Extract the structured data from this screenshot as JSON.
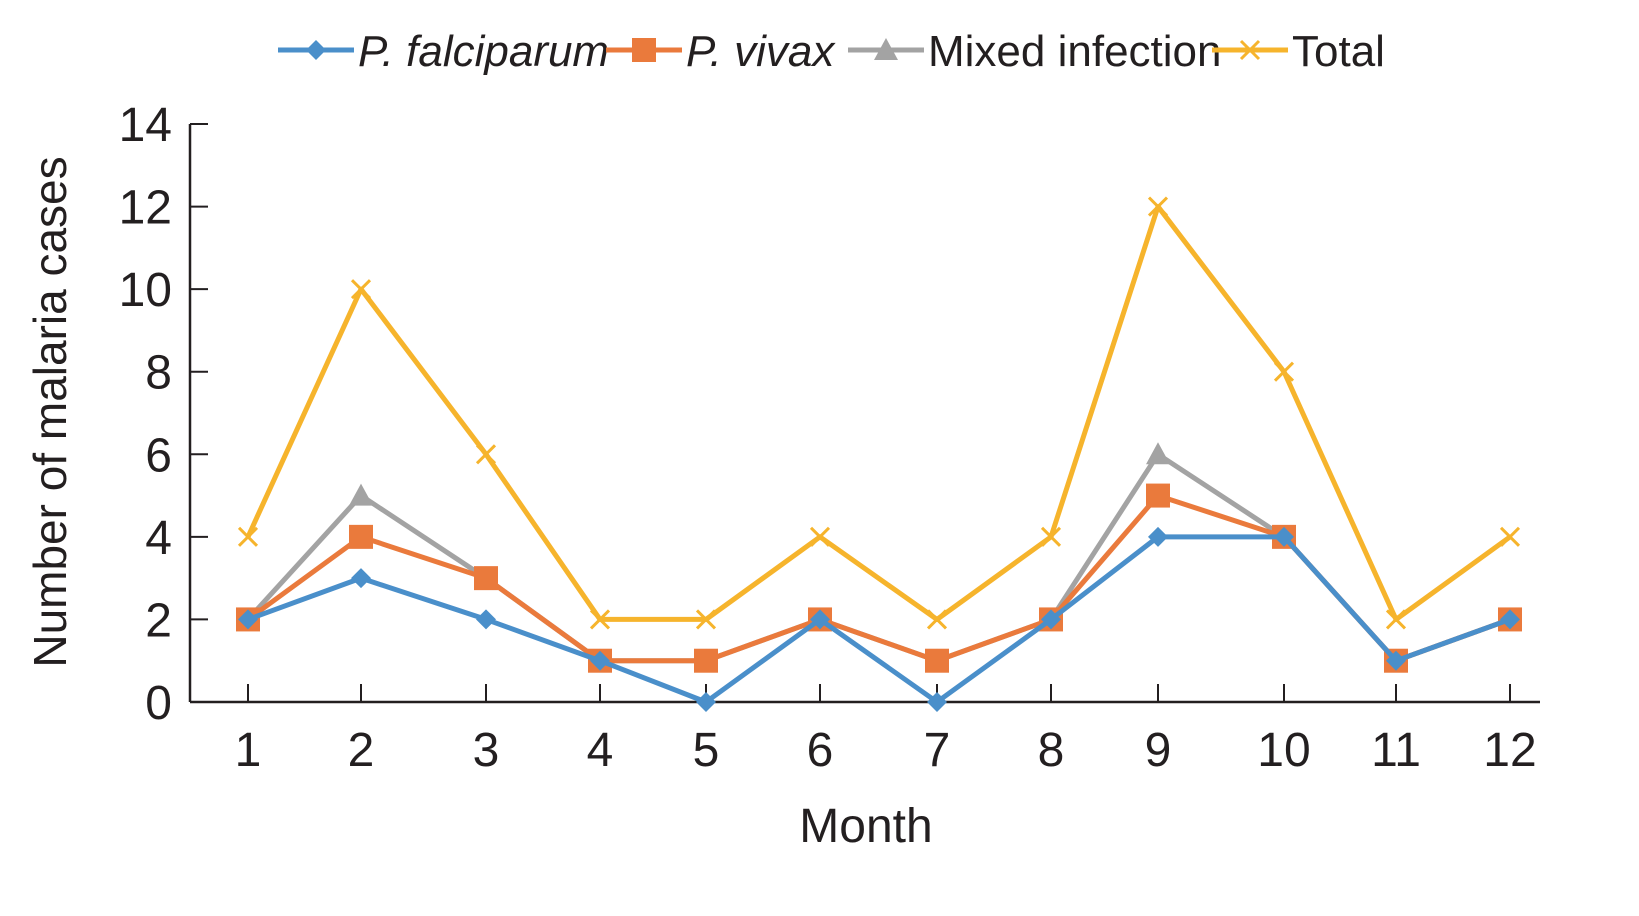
{
  "chart_data": {
    "type": "line",
    "title": "",
    "xlabel": "Month",
    "ylabel": "Number of malaria cases",
    "categories": [
      "1",
      "2",
      "3",
      "4",
      "5",
      "6",
      "7",
      "8",
      "9",
      "10",
      "11",
      "12"
    ],
    "ylim": [
      0,
      14
    ],
    "yticks": [
      "0",
      "2",
      "4",
      "6",
      "8",
      "10",
      "12",
      "14"
    ],
    "grid": false,
    "legend_position": "top",
    "series": [
      {
        "name": "P. falciparum",
        "italic": true,
        "color": "#4a8fca",
        "marker": "diamond",
        "values": [
          2,
          3,
          2,
          1,
          0,
          2,
          0,
          2,
          4,
          4,
          1,
          2
        ]
      },
      {
        "name": "P. vivax",
        "italic": true,
        "color": "#ea7a3c",
        "marker": "square",
        "values": [
          2,
          4,
          3,
          1,
          1,
          2,
          1,
          2,
          5,
          4,
          1,
          2
        ]
      },
      {
        "name": "Mixed infection",
        "italic": false,
        "color": "#a3a3a3",
        "marker": "triangle",
        "values": [
          2,
          5,
          3,
          1,
          1,
          2,
          1,
          2,
          6,
          4,
          1,
          2
        ]
      },
      {
        "name": "Total",
        "italic": false,
        "color": "#f6b42c",
        "marker": "x",
        "values": [
          4,
          10,
          6,
          2,
          2,
          4,
          2,
          4,
          12,
          8,
          2,
          4
        ]
      }
    ]
  }
}
